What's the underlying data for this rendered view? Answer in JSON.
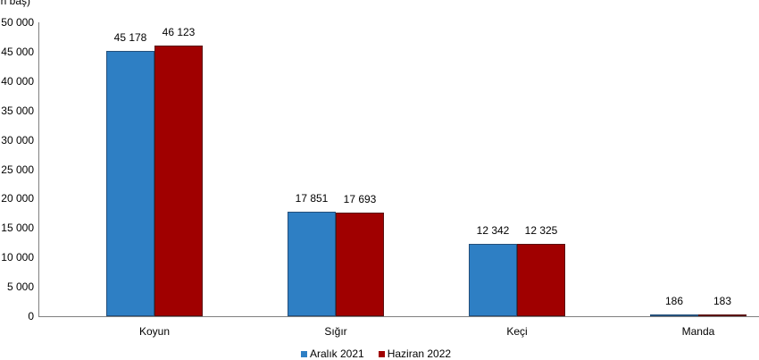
{
  "chart_data": {
    "type": "bar",
    "title": "",
    "ylabel": "(Bin baş)",
    "xlabel": "",
    "ylim": [
      0,
      50000
    ],
    "yticks": [
      "0",
      "5 000",
      "10 000",
      "15 000",
      "20 000",
      "25 000",
      "30 000",
      "35 000",
      "40 000",
      "45 000",
      "50 000"
    ],
    "categories": [
      "Koyun",
      "Sığır",
      "Keçi",
      "Manda"
    ],
    "series": [
      {
        "name": "Aralık 2021",
        "color": "#2e7fc4",
        "values": [
          45178,
          17851,
          12342,
          186
        ],
        "labels": [
          "45 178",
          "17 851",
          "12 342",
          "186"
        ]
      },
      {
        "name": "Haziran 2022",
        "color": "#a00000",
        "values": [
          46123,
          17693,
          12325,
          183
        ],
        "labels": [
          "46 123",
          "17 693",
          "12 325",
          "183"
        ]
      }
    ],
    "legend_position": "bottom",
    "grid": false
  }
}
